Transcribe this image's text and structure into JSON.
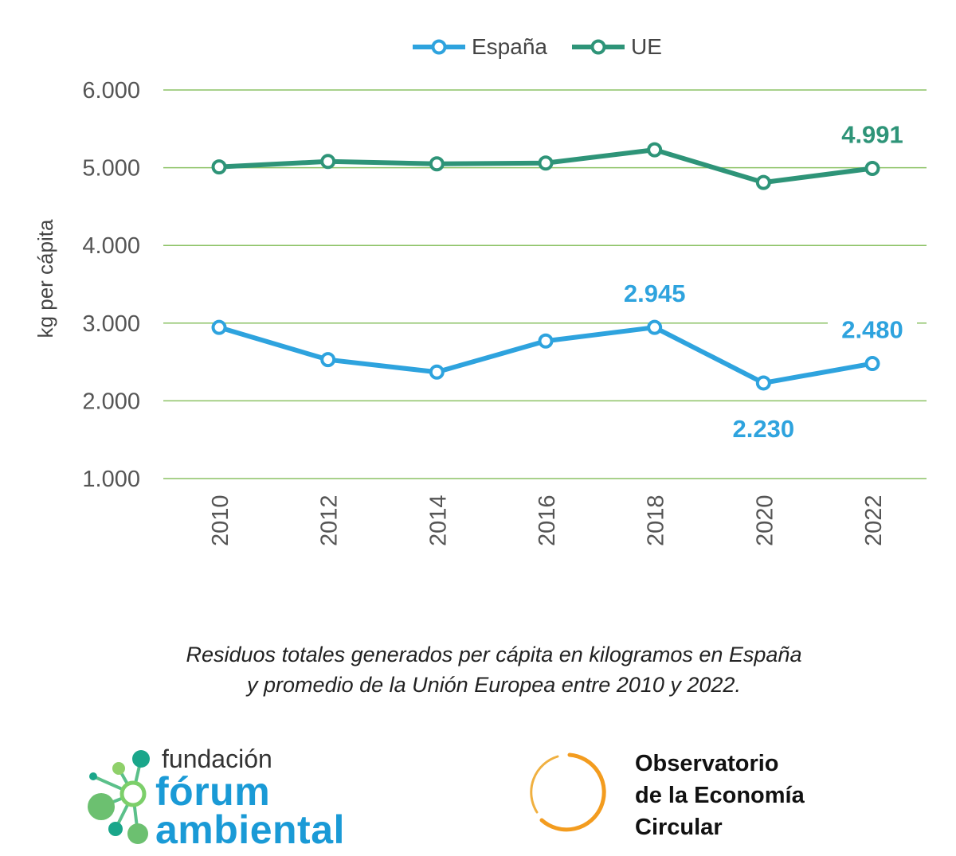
{
  "chart_data": {
    "type": "line",
    "x": [
      "2010",
      "2012",
      "2014",
      "2016",
      "2018",
      "2020",
      "2022"
    ],
    "series": [
      {
        "name": "España",
        "color": "#2ea3de",
        "values": [
          2945,
          2530,
          2370,
          2770,
          2945,
          2230,
          2480
        ]
      },
      {
        "name": "UE",
        "color": "#2e9478",
        "values": [
          5010,
          5080,
          5050,
          5060,
          5230,
          4810,
          4991
        ]
      }
    ],
    "annotations": [
      {
        "series": "España",
        "x": "2018",
        "label": "2.945",
        "position": "above"
      },
      {
        "series": "España",
        "x": "2020",
        "label": "2.230",
        "position": "below"
      },
      {
        "series": "España",
        "x": "2022",
        "label": "2.480",
        "position": "above"
      },
      {
        "series": "UE",
        "x": "2022",
        "label": "4.991",
        "position": "above"
      }
    ],
    "ylabel": "kg per cápita",
    "yticks": [
      "1.000",
      "2.000",
      "3.000",
      "4.000",
      "5.000",
      "6.000"
    ],
    "ytick_values": [
      1000,
      2000,
      3000,
      4000,
      5000,
      6000
    ],
    "ylim": [
      1000,
      6000
    ],
    "grid": "horizontal",
    "grid_color": "#8cc265",
    "legend_position": "top-center"
  },
  "caption": {
    "line1": "Residuos totales generados per cápita en kilogramos en España",
    "line2": "y promedio de la Unión Europea entre 2010 y 2022."
  },
  "logos": {
    "left": {
      "line1": "fundación",
      "line2": "fórum",
      "line3": "ambiental"
    },
    "right": {
      "line1": "Observatorio",
      "line2": "de la Economía",
      "line3": "Circular"
    }
  }
}
